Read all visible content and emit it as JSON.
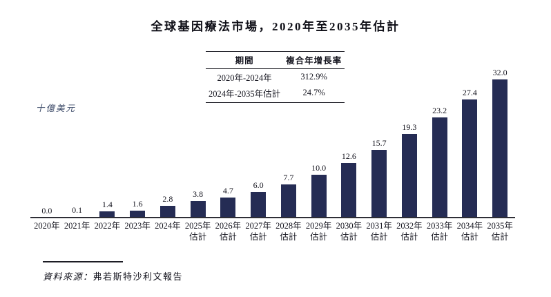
{
  "title": "全球基因療法市場，2020年至2035年估計",
  "y_axis_label": "十億美元",
  "cagr_table": {
    "headers": [
      "期間",
      "複合年增長率"
    ],
    "rows": [
      [
        "2020年-2024年",
        "312.9%"
      ],
      [
        "2024年-2035年估計",
        "24.7%"
      ]
    ]
  },
  "source": {
    "prefix": "資料來源：",
    "text": "弗若斯特沙利文報告"
  },
  "colors": {
    "bar": "#252c54",
    "text": "#14141e",
    "y_label": "#3c4a68"
  },
  "chart_data": {
    "type": "bar",
    "title": "全球基因療法市場，2020年至2035年估計",
    "ylabel": "十億美元",
    "xlabel": "",
    "ylim": [
      0,
      32
    ],
    "grid": false,
    "legend": "none",
    "categories": [
      "2020年",
      "2021年",
      "2022年",
      "2023年",
      "2024年",
      "2025年 估計",
      "2026年 估計",
      "2027年 估計",
      "2028年 估計",
      "2029年 估計",
      "2030年 估計",
      "2031年 估計",
      "2032年 估計",
      "2033年 估計",
      "2034年 估計",
      "2035年 估計"
    ],
    "category_line1": [
      "2020年",
      "2021年",
      "2022年",
      "2023年",
      "2024年",
      "2025年",
      "2026年",
      "2027年",
      "2028年",
      "2029年",
      "2030年",
      "2031年",
      "2032年",
      "2033年",
      "2034年",
      "2035年"
    ],
    "category_line2": [
      "",
      "",
      "",
      "",
      "",
      "估計",
      "估計",
      "估計",
      "估計",
      "估計",
      "估計",
      "估計",
      "估計",
      "估計",
      "估計",
      "估計"
    ],
    "values": [
      0.0,
      0.1,
      1.4,
      1.6,
      2.8,
      3.8,
      4.7,
      6.0,
      7.7,
      10.0,
      12.6,
      15.7,
      19.3,
      23.2,
      27.4,
      32.0
    ],
    "value_labels": [
      "0.0",
      "0.1",
      "1.4",
      "1.6",
      "2.8",
      "3.8",
      "4.7",
      "6.0",
      "7.7",
      "10.0",
      "12.6",
      "15.7",
      "19.3",
      "23.2",
      "27.4",
      "32.0"
    ]
  }
}
